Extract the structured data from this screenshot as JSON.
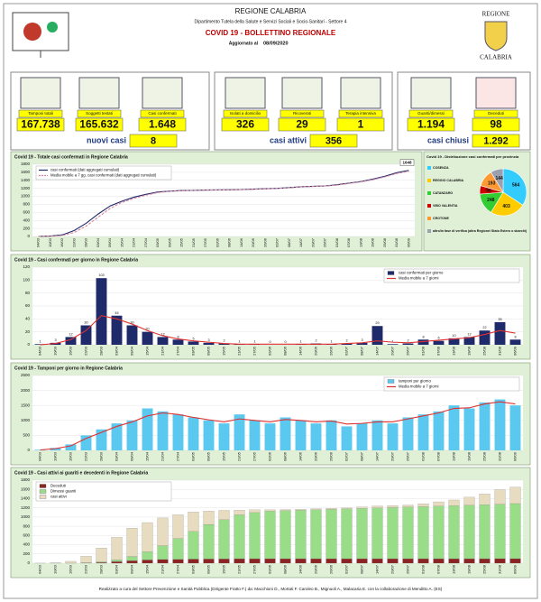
{
  "header": {
    "region": "REGIONE CALABRIA",
    "department": "Dipartimento Tutela della Salute e Servizi Sociali e Socio-Sanitari - Settore 4",
    "title": "COVID 19 - BOLLETTINO REGIONALE",
    "updated_label": "Aggiornato al",
    "date": "08/09/2020",
    "logo_top": "REGIONE",
    "logo_bottom": "CALABRIA"
  },
  "stats": [
    {
      "label": "Tamponi totali",
      "value": "167.738"
    },
    {
      "label": "Soggetti testati",
      "value": "165.632"
    },
    {
      "label": "Casi confermati",
      "value": "1.648"
    },
    {
      "label": "Isolati a domicilio",
      "value": "326"
    },
    {
      "label": "Ricoverati",
      "value": "29"
    },
    {
      "label": "Terapia intensiva",
      "value": "1"
    },
    {
      "label": "Guariti/dimessi",
      "value": "1.194"
    },
    {
      "label": "Deceduti",
      "value": "98"
    }
  ],
  "summary": [
    {
      "label": "nuovi casi",
      "value": "8"
    },
    {
      "label": "casi attivi",
      "value": "356"
    },
    {
      "label": "casi chiusi",
      "value": "1.292"
    }
  ],
  "chart_data": [
    {
      "type": "line",
      "title": "Covid 19 - Totale casi confermati in Regione Calabria",
      "legend": "upper left",
      "grid": true,
      "categories": [
        "04/03",
        "10/03",
        "16/03",
        "22/03",
        "28/03",
        "03/04",
        "09/04",
        "15/04",
        "21/04",
        "27/04",
        "03/05",
        "09/05",
        "15/05",
        "21/05",
        "27/05",
        "02/06",
        "08/06",
        "14/06",
        "20/06",
        "26/06",
        "02/07",
        "08/07",
        "14/07",
        "20/07",
        "26/07",
        "01/08",
        "07/08",
        "13/08",
        "19/08",
        "25/08",
        "31/08",
        "06/09"
      ],
      "ylim": [
        0,
        1800
      ],
      "yticks": [
        0,
        200,
        400,
        600,
        800,
        1000,
        1200,
        1400,
        1600,
        1800
      ],
      "series": [
        {
          "name": "casi confermati (dati aggregati cumulati)",
          "color": "#1f2a6b",
          "end_label": true,
          "values": [
            1,
            10,
            40,
            150,
            330,
            560,
            760,
            880,
            980,
            1050,
            1110,
            1130,
            1145,
            1150,
            1158,
            1160,
            1163,
            1170,
            1180,
            1190,
            1200,
            1220,
            1240,
            1250,
            1260,
            1290,
            1330,
            1370,
            1430,
            1500,
            1590,
            1648
          ]
        },
        {
          "name": "Media mobile a 7 gg. casi confermati (dati aggregati cumulati)",
          "color": "#d98aa0",
          "dashed": true,
          "values": [
            0,
            5,
            25,
            100,
            260,
            480,
            700,
            850,
            950,
            1030,
            1095,
            1125,
            1140,
            1148,
            1155,
            1159,
            1162,
            1168,
            1177,
            1187,
            1197,
            1215,
            1235,
            1247,
            1257,
            1280,
            1320,
            1360,
            1415,
            1485,
            1570,
            1625
          ]
        }
      ]
    },
    {
      "type": "pie",
      "title": "Covid 19 - Distribuzione casi confermati per provincia",
      "categories": [
        "COSENZA",
        "REGGIO CALABRIA",
        "CATANZARO",
        "VIBO VALENTIA",
        "CROTONE",
        "altro/in fase di verifica (altra Regione/ Stato Estero o sbarchi)"
      ],
      "values": [
        564,
        403,
        248,
        96,
        193,
        144
      ],
      "colors": [
        "#33ccff",
        "#ffcc00",
        "#33cc33",
        "#cc0000",
        "#ff9933",
        "#9aa0b0"
      ]
    },
    {
      "type": "bar",
      "title": "Covid 19 - Casi confermati per giorno in Regione Calabria",
      "legend": "upper right",
      "grid": true,
      "categories": [
        "04/03",
        "10/03",
        "16/03",
        "22/03",
        "28/03",
        "03/04",
        "09/04",
        "15/04",
        "21/04",
        "27/04",
        "03/05",
        "09/05",
        "15/05",
        "21/05",
        "27/05",
        "02/06",
        "08/06",
        "14/06",
        "20/06",
        "26/06",
        "02/07",
        "08/07",
        "14/07",
        "20/07",
        "26/07",
        "01/08",
        "07/08",
        "13/08",
        "19/08",
        "25/08",
        "31/08",
        "06/09"
      ],
      "ylim": [
        0,
        120
      ],
      "yticks": [
        0,
        20,
        40,
        60,
        80,
        100,
        120
      ],
      "series": [
        {
          "name": "casi confermati per giorno",
          "color": "#1f2a6b",
          "type": "bar",
          "data_labels": true,
          "values": [
            1,
            3,
            12,
            30,
            103,
            45,
            30,
            20,
            12,
            8,
            5,
            3,
            2,
            1,
            1,
            0,
            0,
            1,
            2,
            1,
            2,
            3,
            29,
            1,
            2,
            8,
            6,
            10,
            12,
            22,
            35,
            8
          ]
        },
        {
          "name": "Media mobile a 7 giorni",
          "color": "#e03030",
          "type": "line",
          "values": [
            0,
            2,
            8,
            22,
            45,
            40,
            32,
            22,
            14,
            9,
            6,
            4,
            2,
            1,
            1,
            1,
            1,
            1,
            1,
            1,
            2,
            3,
            6,
            4,
            3,
            5,
            7,
            9,
            11,
            16,
            22,
            18
          ]
        }
      ]
    },
    {
      "type": "bar",
      "title": "Covid 19 - Tamponi per giorno in Regione Calabria",
      "legend": "upper right",
      "grid": true,
      "categories": [
        "04/03",
        "10/03",
        "16/03",
        "22/03",
        "28/03",
        "03/04",
        "09/04",
        "15/04",
        "21/04",
        "27/04",
        "03/05",
        "09/05",
        "15/05",
        "21/05",
        "27/05",
        "02/06",
        "08/06",
        "14/06",
        "20/06",
        "26/06",
        "02/07",
        "08/07",
        "14/07",
        "20/07",
        "26/07",
        "01/08",
        "07/08",
        "13/08",
        "19/08",
        "25/08",
        "31/08",
        "06/09"
      ],
      "ylim": [
        0,
        2500
      ],
      "yticks": [
        0,
        500,
        1000,
        1500,
        2000,
        2500
      ],
      "series": [
        {
          "name": "tamponi per giorno",
          "color": "#5bc8f0",
          "type": "bar",
          "values": [
            20,
            80,
            200,
            500,
            700,
            900,
            1000,
            1400,
            1300,
            1200,
            1100,
            1000,
            900,
            1200,
            1000,
            900,
            1100,
            1000,
            900,
            1000,
            800,
            900,
            1000,
            900,
            1100,
            1200,
            1300,
            1500,
            1400,
            1600,
            1700,
            1500
          ]
        },
        {
          "name": "Media mobile a 7 giorni",
          "color": "#e03030",
          "type": "line",
          "values": [
            15,
            60,
            150,
            400,
            600,
            800,
            950,
            1150,
            1250,
            1200,
            1100,
            1020,
            950,
            1050,
            1000,
            950,
            1030,
            1000,
            950,
            980,
            880,
            900,
            950,
            950,
            1050,
            1150,
            1250,
            1400,
            1420,
            1550,
            1620,
            1550
          ]
        }
      ]
    },
    {
      "type": "stacked-bar",
      "title": "Covid 19 - Casi attivi ai guariti e decedenti in Regione Calabria",
      "legend": "upper left",
      "grid": true,
      "categories": [
        "04/03",
        "10/03",
        "16/03",
        "22/03",
        "28/03",
        "03/04",
        "09/04",
        "15/04",
        "21/04",
        "27/04",
        "03/05",
        "09/05",
        "15/05",
        "21/05",
        "27/05",
        "02/06",
        "08/06",
        "14/06",
        "20/06",
        "26/06",
        "02/07",
        "08/07",
        "14/07",
        "20/07",
        "26/07",
        "01/08",
        "07/08",
        "13/08",
        "19/08",
        "25/08",
        "31/08",
        "06/09"
      ],
      "ylim": [
        0,
        1800
      ],
      "yticks": [
        0,
        200,
        400,
        600,
        800,
        1000,
        1200,
        1400,
        1600,
        1800
      ],
      "series": [
        {
          "name": "Deceduti",
          "color": "#8b2323",
          "values": [
            0,
            0,
            1,
            5,
            15,
            35,
            55,
            70,
            80,
            84,
            88,
            90,
            94,
            97,
            97,
            97,
            97,
            97,
            97,
            97,
            97,
            97,
            97,
            97,
            97,
            97,
            97,
            97,
            97,
            97,
            98,
            98
          ]
        },
        {
          "name": "Dimessi guariti",
          "color": "#99dd88",
          "values": [
            0,
            0,
            0,
            5,
            15,
            40,
            90,
            180,
            300,
            450,
            600,
            750,
            850,
            950,
            1000,
            1030,
            1040,
            1050,
            1060,
            1070,
            1080,
            1090,
            1100,
            1110,
            1120,
            1130,
            1140,
            1150,
            1160,
            1170,
            1180,
            1194
          ]
        },
        {
          "name": "casi attivi",
          "color": "#e8dcc0",
          "values": [
            1,
            10,
            39,
            140,
            300,
            485,
            615,
            630,
            600,
            516,
            422,
            290,
            201,
            103,
            61,
            33,
            26,
            23,
            23,
            23,
            23,
            33,
            43,
            43,
            43,
            63,
            93,
            123,
            173,
            233,
            312,
            356
          ]
        }
      ]
    }
  ],
  "footer": "Realizzato a cura del Settore Prevenzione e Sanità Pubblica (Dirigente Fratto F.) da: Macchioni D., Mortati F. Caroleo B., Mignuoli A., Malacaria E. con la collaborazione di Menditto A. (ES)"
}
